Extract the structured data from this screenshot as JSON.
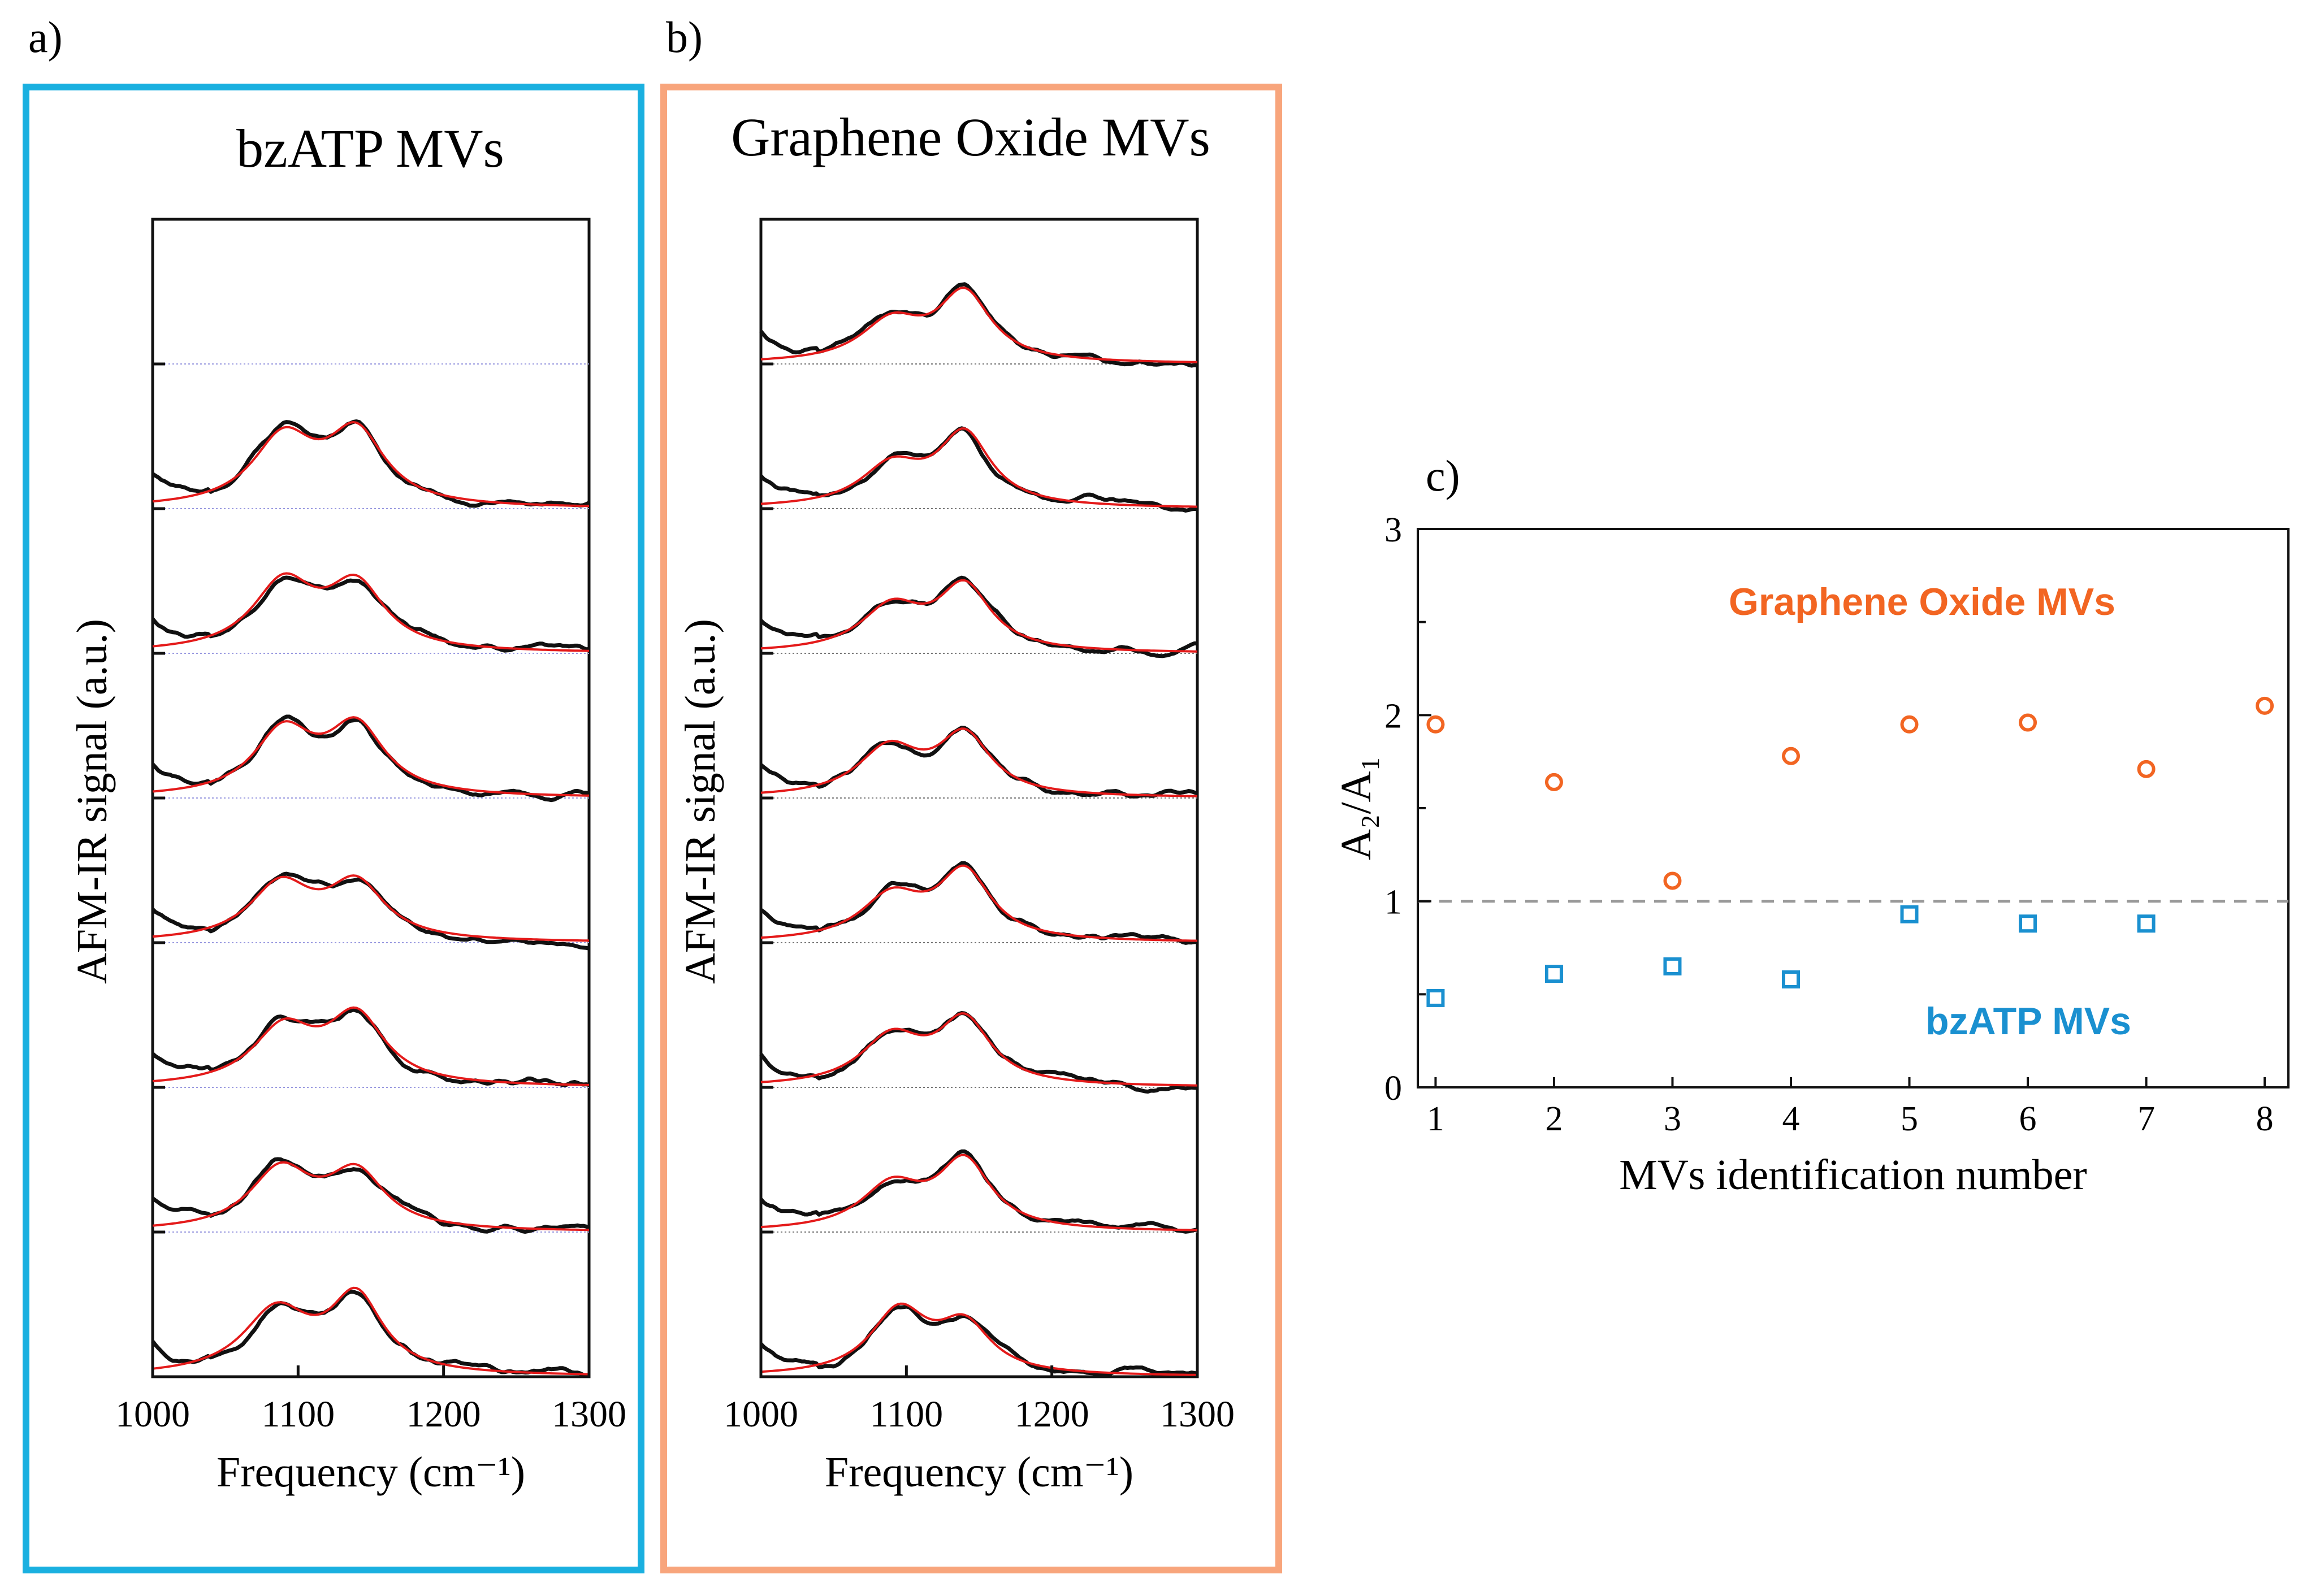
{
  "panels": {
    "a": {
      "letter": "a)",
      "title": "bzATP MVs",
      "frame_color": "#1ab0e0"
    },
    "b": {
      "letter": "b)",
      "title": "Graphene Oxide MVs",
      "frame_color": "#f8a57c"
    },
    "c": {
      "letter": "c)"
    }
  },
  "chart_data": [
    {
      "id": "a",
      "type": "line",
      "title": "bzATP MVs",
      "xlabel": "Frequency (cm⁻¹)",
      "ylabel": "AFM-IR signal (a.u.)",
      "xlim": [
        1000,
        1300
      ],
      "xticks": [
        "1000",
        "1100",
        "1200",
        "1300"
      ],
      "n_slots": 8,
      "offset_line_color": "#9a9ae0",
      "series": [
        {
          "name": "spectrum 1",
          "peaks": [
            [
              1085,
              28,
              0.8
            ],
            [
              1140,
              22,
              0.95
            ]
          ]
        },
        {
          "name": "spectrum 2",
          "peaks": [
            [
              1088,
              26,
              0.75
            ],
            [
              1140,
              24,
              0.7
            ]
          ]
        },
        {
          "name": "spectrum 3",
          "peaks": [
            [
              1090,
              26,
              0.7
            ],
            [
              1140,
              24,
              0.85
            ]
          ]
        },
        {
          "name": "spectrum 4",
          "peaks": [
            [
              1088,
              26,
              0.7
            ],
            [
              1140,
              24,
              0.7
            ]
          ]
        },
        {
          "name": "spectrum 5",
          "peaks": [
            [
              1090,
              25,
              0.8
            ],
            [
              1140,
              24,
              0.85
            ]
          ]
        },
        {
          "name": "spectrum 6",
          "peaks": [
            [
              1090,
              26,
              0.85
            ],
            [
              1140,
              24,
              0.8
            ]
          ]
        },
        {
          "name": "spectrum 7",
          "peaks": [
            [
              1090,
              26,
              0.85
            ],
            [
              1140,
              24,
              0.9
            ]
          ]
        }
      ],
      "fit_color": "#e41a1a",
      "data_color": "#111111"
    },
    {
      "id": "b",
      "type": "line",
      "title": "Graphene Oxide MVs",
      "xlabel": "Frequency (cm⁻¹)",
      "ylabel": "AFM-IR signal (a.u.)",
      "xlim": [
        1000,
        1300
      ],
      "xticks": [
        "1000",
        "1100",
        "1200",
        "1300"
      ],
      "n_slots": 8,
      "offset_line_color": "#777777",
      "series": [
        {
          "name": "spectrum 1",
          "peaks": [
            [
              1095,
              24,
              0.8
            ],
            [
              1140,
              22,
              0.6
            ]
          ]
        },
        {
          "name": "spectrum 2",
          "peaks": [
            [
              1090,
              26,
              0.55
            ],
            [
              1140,
              22,
              0.85
            ]
          ]
        },
        {
          "name": "spectrum 3",
          "peaks": [
            [
              1090,
              26,
              0.6
            ],
            [
              1140,
              22,
              0.8
            ]
          ]
        },
        {
          "name": "spectrum 4",
          "peaks": [
            [
              1090,
              26,
              0.55
            ],
            [
              1140,
              22,
              0.85
            ]
          ]
        },
        {
          "name": "spectrum 5",
          "peaks": [
            [
              1088,
              26,
              0.6
            ],
            [
              1140,
              22,
              0.75
            ]
          ]
        },
        {
          "name": "spectrum 6",
          "peaks": [
            [
              1090,
              26,
              0.55
            ],
            [
              1140,
              22,
              0.8
            ]
          ]
        },
        {
          "name": "spectrum 7",
          "peaks": [
            [
              1090,
              26,
              0.5
            ],
            [
              1140,
              22,
              0.9
            ]
          ]
        },
        {
          "name": "spectrum 8",
          "peaks": [
            [
              1090,
              26,
              0.5
            ],
            [
              1140,
              22,
              0.85
            ]
          ]
        }
      ],
      "fit_color": "#e41a1a",
      "data_color": "#111111"
    },
    {
      "id": "c",
      "type": "scatter",
      "title": "",
      "xlabel": "MVs identification number",
      "ylabel": "A₂/A₁",
      "xlim": [
        0.85,
        8.2
      ],
      "ylim": [
        0,
        3
      ],
      "xticks": [
        1,
        2,
        3,
        4,
        5,
        6,
        7,
        8
      ],
      "yticks": [
        0,
        1,
        2,
        3
      ],
      "reference_line": 1,
      "series": [
        {
          "name": "Graphene Oxide MVs",
          "label": "Graphene Oxide MVs",
          "marker": "circle",
          "color": "#f26522",
          "x": [
            1,
            2,
            3,
            4,
            5,
            6,
            7,
            8
          ],
          "y": [
            1.95,
            1.64,
            1.11,
            1.78,
            1.95,
            1.96,
            1.71,
            2.05
          ]
        },
        {
          "name": "bzATP MVs",
          "label": "bzATP MVs",
          "marker": "square",
          "color": "#1a90d0",
          "x": [
            1,
            2,
            3,
            4,
            5,
            6,
            7
          ],
          "y": [
            0.48,
            0.61,
            0.65,
            0.58,
            0.93,
            0.88,
            0.88
          ]
        }
      ]
    }
  ]
}
